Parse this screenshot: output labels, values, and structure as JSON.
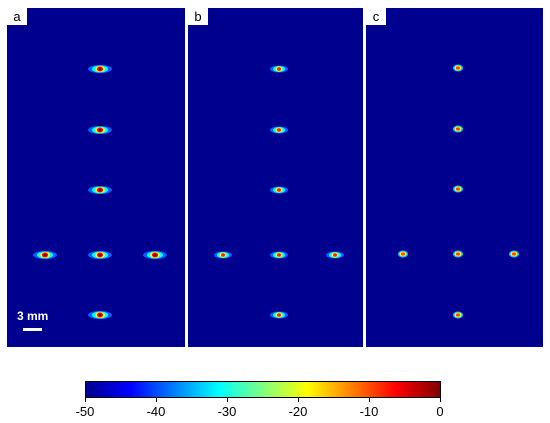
{
  "panels": [
    {
      "label": "a"
    },
    {
      "label": "b"
    },
    {
      "label": "c"
    }
  ],
  "scale_bar": {
    "text": "3 mm"
  },
  "colorbar": {
    "min": -50,
    "max": 0,
    "ticks": [
      "-50",
      "-40",
      "-30",
      "-20",
      "-10",
      "0"
    ],
    "colormap": "jet"
  }
}
